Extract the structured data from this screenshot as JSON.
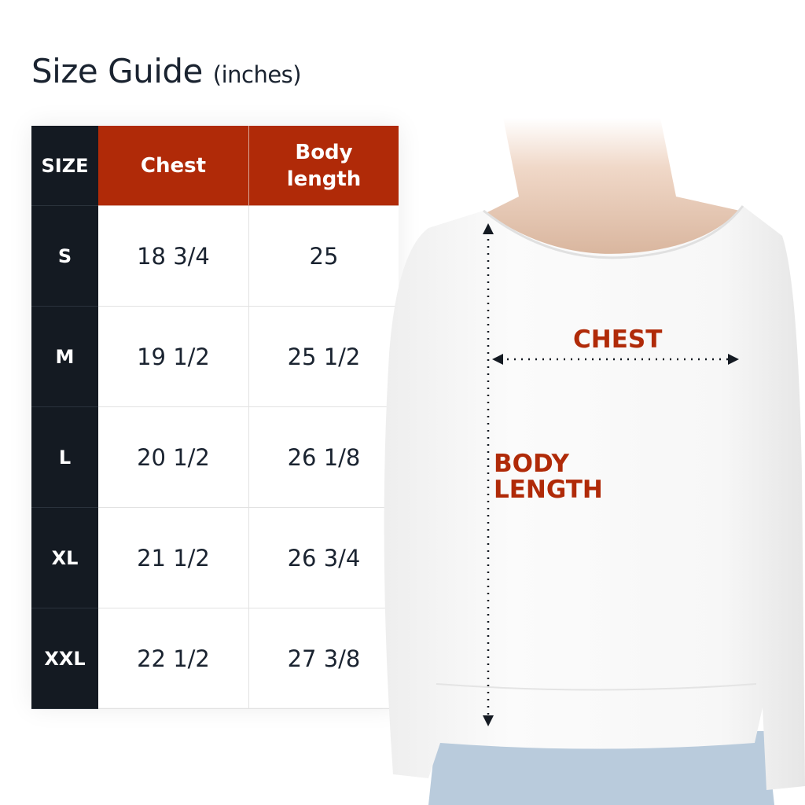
{
  "title": {
    "main": "Size Guide",
    "unit": "(inches)"
  },
  "table": {
    "headers": [
      "SIZE",
      "Chest",
      "Body length"
    ],
    "rows": [
      {
        "size": "S",
        "chest": "18 3/4",
        "body_length": "25"
      },
      {
        "size": "M",
        "chest": "19 1/2",
        "body_length": "25 1/2"
      },
      {
        "size": "L",
        "chest": "20 1/2",
        "body_length": "26 1/8"
      },
      {
        "size": "XL",
        "chest": "21 1/2",
        "body_length": "26 3/4"
      },
      {
        "size": "XXL",
        "chest": "22 1/2",
        "body_length": "27 3/8"
      }
    ]
  },
  "diagram": {
    "chest_label": "CHEST",
    "body_length_label": "BODY LENGTH"
  },
  "colors": {
    "header_red": "#b02a08",
    "size_column": "#141a22",
    "text": "#1a2330"
  }
}
